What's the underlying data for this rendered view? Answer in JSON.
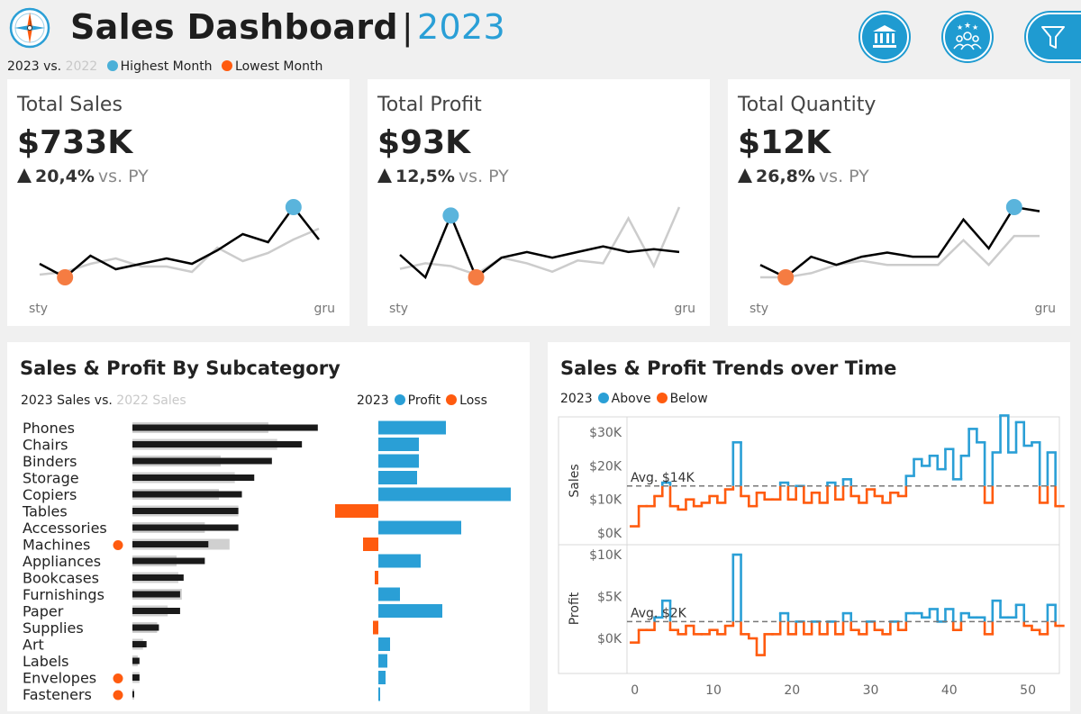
{
  "header": {
    "title": "Sales Dashboard",
    "separator": "|",
    "year": "2023",
    "icons": [
      "compass-logo-icon",
      "bank-icon",
      "people-stars-icon",
      "funnel-icon"
    ]
  },
  "legend": {
    "current": "2023 vs.",
    "previous": "2022",
    "highest": "Highest Month",
    "lowest": "Lowest Month"
  },
  "colors": {
    "blue": "#2a9fd6",
    "orange": "#ff5b0f",
    "black": "#000000",
    "grey": "#cccccc"
  },
  "kpis": [
    {
      "title": "Total Sales",
      "value": "$733K",
      "delta": "20,4%",
      "vs": "vs. PY",
      "x_start": "sty",
      "x_end": "gru",
      "current": [
        11.5,
        9,
        13,
        10.5,
        11.5,
        12.5,
        11.5,
        14,
        17,
        15.5,
        22,
        16
      ],
      "previous": [
        9.5,
        10,
        11.5,
        12.5,
        11,
        11,
        10,
        14.5,
        12,
        13.5,
        16,
        18
      ],
      "high_index": 10,
      "low_index": 1
    },
    {
      "title": "Total Profit",
      "value": "$93K",
      "delta": "12,5%",
      "vs": "vs. PY",
      "x_start": "sty",
      "x_end": "gru",
      "current": [
        12,
        8,
        19,
        8,
        11.5,
        12.5,
        11.5,
        12.5,
        13.5,
        12.5,
        13,
        12.5
      ],
      "previous": [
        9.5,
        10.5,
        10,
        8.5,
        11.5,
        10.5,
        9,
        11,
        10.5,
        18.5,
        10,
        20.5
      ],
      "high_index": 2,
      "low_index": 3
    },
    {
      "title": "Total Quantity",
      "value": "$12K",
      "delta": "26,8%",
      "vs": "vs. PY",
      "x_start": "sty",
      "x_end": "gru",
      "current": [
        10,
        8.5,
        11,
        10,
        11,
        11.5,
        11,
        11,
        15.5,
        12,
        17,
        16.5
      ],
      "previous": [
        8.5,
        8.5,
        9,
        10,
        10.5,
        10,
        10,
        10,
        13,
        10,
        13.5,
        13.5
      ],
      "high_index": 10,
      "low_index": 1
    }
  ],
  "subcategory": {
    "title": "Sales & Profit By Subcategory",
    "legend_left_current": "2023 Sales vs.",
    "legend_left_previous": "2022 Sales",
    "legend_right_year": "2023",
    "legend_profit": "Profit",
    "legend_loss": "Loss",
    "rows": [
      {
        "name": "Phones",
        "sales_2023": 105,
        "sales_2022": 77,
        "profit": 75,
        "loss_dot": false
      },
      {
        "name": "Chairs",
        "sales_2023": 96,
        "sales_2022": 82,
        "profit": 45,
        "loss_dot": false
      },
      {
        "name": "Binders",
        "sales_2023": 79,
        "sales_2022": 50,
        "profit": 45,
        "loss_dot": false
      },
      {
        "name": "Storage",
        "sales_2023": 69,
        "sales_2022": 58,
        "profit": 43,
        "loss_dot": false
      },
      {
        "name": "Copiers",
        "sales_2023": 62,
        "sales_2022": 49,
        "profit": 147,
        "loss_dot": false
      },
      {
        "name": "Tables",
        "sales_2023": 60,
        "sales_2022": 60,
        "profit": -48,
        "loss_dot": false
      },
      {
        "name": "Accessories",
        "sales_2023": 60,
        "sales_2022": 41,
        "profit": 92,
        "loss_dot": false
      },
      {
        "name": "Machines",
        "sales_2023": 43,
        "sales_2022": 55,
        "profit": -17,
        "loss_dot": true
      },
      {
        "name": "Appliances",
        "sales_2023": 41,
        "sales_2022": 25,
        "profit": 47,
        "loss_dot": false
      },
      {
        "name": "Bookcases",
        "sales_2023": 29,
        "sales_2022": 26,
        "profit": -4,
        "loss_dot": false
      },
      {
        "name": "Furnishings",
        "sales_2023": 27,
        "sales_2022": 28,
        "profit": 24,
        "loss_dot": false
      },
      {
        "name": "Paper",
        "sales_2023": 27,
        "sales_2022": 20,
        "profit": 71,
        "loss_dot": false
      },
      {
        "name": "Supplies",
        "sales_2023": 15,
        "sales_2022": 14,
        "profit": -6,
        "loss_dot": false
      },
      {
        "name": "Art",
        "sales_2023": 8,
        "sales_2022": 6,
        "profit": 13,
        "loss_dot": false
      },
      {
        "name": "Labels",
        "sales_2023": 4,
        "sales_2022": 3,
        "profit": 10,
        "loss_dot": false
      },
      {
        "name": "Envelopes",
        "sales_2023": 4,
        "sales_2022": 4,
        "profit": 8,
        "loss_dot": true
      },
      {
        "name": "Fasteners",
        "sales_2023": 1,
        "sales_2022": 1,
        "profit": 2,
        "loss_dot": true
      }
    ]
  },
  "trends": {
    "title": "Sales & Profit Trends over Time",
    "legend_year": "2023",
    "legend_above": "Above",
    "legend_below": "Below",
    "sales_axis_label": "Sales",
    "profit_axis_label": "Profit",
    "sales_ticks": [
      "$30K",
      "$20K",
      "$10K",
      "$0K"
    ],
    "sales_tick_values": [
      30,
      20,
      10,
      0
    ],
    "profit_ticks": [
      "$10K",
      "$5K",
      "$0K"
    ],
    "profit_tick_values": [
      10,
      5,
      0
    ],
    "x_ticks": [
      "0",
      "10",
      "20",
      "30",
      "40",
      "50"
    ],
    "x_tick_values": [
      0,
      10,
      20,
      30,
      40,
      50
    ],
    "sales_avg_label": "Avg. $14K",
    "sales_avg": 14,
    "profit_avg_label": "Avg. $2K",
    "profit_avg": 2,
    "sales_weekly": [
      2,
      8,
      8,
      11,
      15,
      8,
      7,
      10,
      8,
      9,
      11,
      9,
      13,
      27,
      11,
      8,
      12,
      10,
      10,
      15,
      10,
      14,
      9,
      12,
      9,
      15,
      10,
      16,
      11,
      9,
      13,
      11,
      9,
      12,
      11,
      17,
      22,
      20,
      23,
      19,
      25,
      16,
      23,
      31,
      27,
      9,
      24,
      35,
      24,
      33,
      26,
      27,
      9,
      24,
      8
    ],
    "profit_weekly": [
      -0.5,
      1,
      1,
      2.5,
      4.5,
      1,
      0.5,
      1.5,
      0.5,
      0.5,
      1,
      0.5,
      1.5,
      10,
      0.5,
      0,
      -2,
      0.5,
      0.5,
      3,
      0.5,
      2,
      0.5,
      2,
      0.5,
      2,
      0.5,
      3,
      1,
      0.5,
      2,
      1,
      0.5,
      2,
      1,
      3,
      3,
      2.5,
      3.5,
      2,
      3.5,
      1,
      3,
      2.5,
      2.5,
      0.5,
      4.5,
      2.5,
      2.5,
      4,
      1.5,
      1,
      0.5,
      4,
      1.5
    ]
  }
}
